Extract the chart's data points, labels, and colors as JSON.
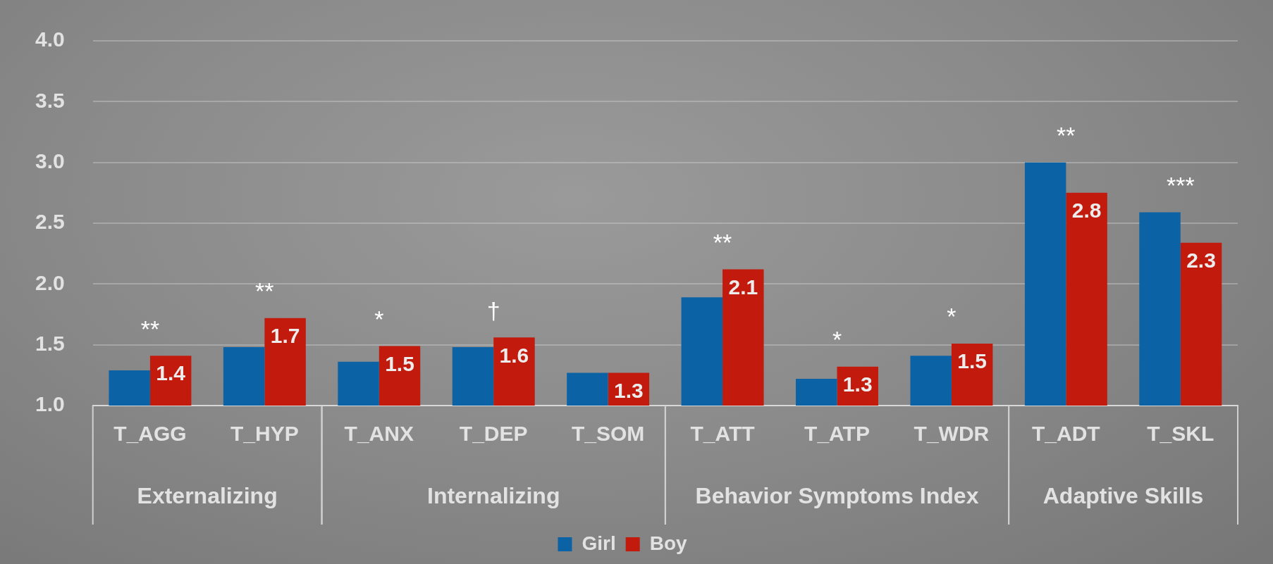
{
  "chart_data": {
    "type": "bar",
    "categories": [
      "T_AGG",
      "T_HYP",
      "T_ANX",
      "T_DEP",
      "T_SOM",
      "T_ATT",
      "T_ATP",
      "T_WDR",
      "T_ADT",
      "T_SKL"
    ],
    "series": [
      {
        "name": "Girl",
        "color": "#0b63a6",
        "values": [
          1.29,
          1.48,
          1.36,
          1.48,
          1.27,
          1.89,
          1.22,
          1.41,
          3.0,
          2.59
        ]
      },
      {
        "name": "Boy",
        "color": "#c21a0c",
        "values": [
          1.41,
          1.72,
          1.49,
          1.56,
          1.27,
          2.12,
          1.32,
          1.51,
          2.75,
          2.34
        ],
        "value_labels": [
          "1.4",
          "1.7",
          "1.5",
          "1.6",
          "1.3",
          "2.1",
          "1.3",
          "1.5",
          "2.8",
          "2.3"
        ]
      }
    ],
    "ylim": [
      1.0,
      4.0
    ],
    "yticks": [
      {
        "value": 1.0,
        "label": "1.0"
      },
      {
        "value": 1.5,
        "label": "1.5"
      },
      {
        "value": 2.0,
        "label": "2.0"
      },
      {
        "value": 2.5,
        "label": "2.5"
      },
      {
        "value": 3.0,
        "label": "3.0"
      },
      {
        "value": 3.5,
        "label": "3.5"
      },
      {
        "value": 4.0,
        "label": "4.0"
      }
    ],
    "grid": "y",
    "legend": "bottom",
    "annotations": [
      {
        "text": "**",
        "x": "T_AGG",
        "y": 1.41
      },
      {
        "text": "**",
        "x": "T_HYP",
        "y": 1.72
      },
      {
        "text": "*",
        "x": "T_ANX",
        "y": 1.49
      },
      {
        "text": "†",
        "x": "T_DEP",
        "y": 1.56
      },
      {
        "text": "**",
        "x": "T_ATT",
        "y": 2.12
      },
      {
        "text": "*",
        "x": "T_ATP",
        "y": 1.32
      },
      {
        "text": "*",
        "x": "T_WDR",
        "y": 1.51
      },
      {
        "text": "**",
        "x": "T_ADT",
        "y": 3.0
      },
      {
        "text": "***",
        "x": "T_SKL",
        "y": 2.59
      },
      {
        "text": "Externalizing",
        "x": "T_AGG"
      },
      {
        "text": "Internalizing",
        "x": "T_ANX"
      },
      {
        "text": "Behavior Symptoms Index",
        "x": "T_ATT"
      },
      {
        "text": "Adaptive Skills",
        "x": "T_ADT"
      }
    ]
  }
}
